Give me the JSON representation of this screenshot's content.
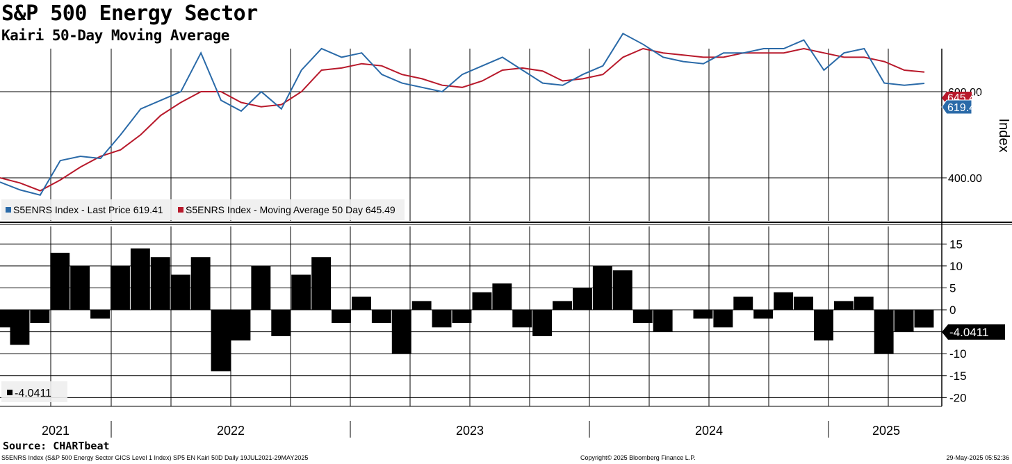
{
  "title": "S&P 500 Energy Sector",
  "subtitle": "Kairi 50-Day Moving Average",
  "source": "Source: CHARTbeat",
  "footer": {
    "left": "S5ENRS Index (S&P 500 Energy Sector GICS Level 1 Index) SP5 EN Kairi 50D  Daily 19JUL2021-29MAY2025",
    "center": "Copyright© 2025 Bloomberg Finance L.P.",
    "right": "29-May-2025 05:52:36"
  },
  "colors": {
    "price": "#2a6aa8",
    "ma": "#b8192b",
    "kairi": "#000000",
    "grid": "#000000"
  },
  "chart_data": [
    {
      "type": "line",
      "ylabel": "Index",
      "ylim": [
        300,
        700
      ],
      "y_ticks": [
        "400.00",
        "600.00"
      ],
      "legend": [
        "S5ENRS Index - Last Price 619.41",
        "S5ENRS Index - Moving Average 50 Day 645.49"
      ],
      "legend_position": "bottom-left",
      "last_labels": {
        "ma": "645.49",
        "price": "619.41"
      },
      "x": [
        "2021-07",
        "2021-08",
        "2021-09",
        "2021-10",
        "2021-11",
        "2021-12",
        "2022-01",
        "2022-02",
        "2022-03",
        "2022-04",
        "2022-05",
        "2022-06",
        "2022-07",
        "2022-08",
        "2022-09",
        "2022-10",
        "2022-11",
        "2022-12",
        "2023-01",
        "2023-02",
        "2023-03",
        "2023-04",
        "2023-05",
        "2023-06",
        "2023-07",
        "2023-08",
        "2023-09",
        "2023-10",
        "2023-11",
        "2023-12",
        "2024-01",
        "2024-02",
        "2024-03",
        "2024-04",
        "2024-05",
        "2024-06",
        "2024-07",
        "2024-08",
        "2024-09",
        "2024-10",
        "2024-11",
        "2024-12",
        "2025-01",
        "2025-02",
        "2025-03",
        "2025-04",
        "2025-05"
      ],
      "series": [
        {
          "name": "S5ENRS Index - Last Price 619.41",
          "values": [
            390,
            372,
            360,
            440,
            450,
            445,
            500,
            560,
            580,
            600,
            690,
            580,
            555,
            600,
            560,
            650,
            700,
            680,
            690,
            640,
            620,
            610,
            600,
            640,
            660,
            680,
            650,
            620,
            615,
            640,
            660,
            735,
            710,
            680,
            670,
            665,
            690,
            690,
            700,
            700,
            720,
            650,
            690,
            700,
            620,
            615,
            619.41
          ]
        },
        {
          "name": "S5ENRS Index - Moving Average 50 Day 645.49",
          "values": [
            400,
            388,
            370,
            395,
            425,
            450,
            465,
            500,
            545,
            575,
            600,
            600,
            575,
            565,
            570,
            600,
            650,
            655,
            665,
            660,
            640,
            630,
            615,
            610,
            625,
            650,
            655,
            648,
            625,
            630,
            640,
            680,
            700,
            690,
            685,
            680,
            680,
            690,
            690,
            690,
            700,
            690,
            680,
            680,
            670,
            650,
            645.49
          ]
        }
      ]
    },
    {
      "type": "bar",
      "title": "Kairi 50-Day Moving Average",
      "ylim": [
        -22,
        19
      ],
      "y_ticks": [
        15,
        10,
        5,
        0,
        -5,
        -10,
        -15,
        -20
      ],
      "last_value": "-4.0411",
      "legend": [
        "-4.0411"
      ],
      "legend_position": "bottom-left",
      "x_labels": [
        "2021",
        "2022",
        "2023",
        "2024",
        "2025"
      ],
      "x": [
        "2021-07",
        "2021-08",
        "2021-09",
        "2021-10",
        "2021-11",
        "2021-12",
        "2022-01",
        "2022-02",
        "2022-03",
        "2022-04",
        "2022-05",
        "2022-06",
        "2022-07",
        "2022-08",
        "2022-09",
        "2022-10",
        "2022-11",
        "2022-12",
        "2023-01",
        "2023-02",
        "2023-03",
        "2023-04",
        "2023-05",
        "2023-06",
        "2023-07",
        "2023-08",
        "2023-09",
        "2023-10",
        "2023-11",
        "2023-12",
        "2024-01",
        "2024-02",
        "2024-03",
        "2024-04",
        "2024-05",
        "2024-06",
        "2024-07",
        "2024-08",
        "2024-09",
        "2024-10",
        "2024-11",
        "2024-12",
        "2025-01",
        "2025-02",
        "2025-03",
        "2025-04",
        "2025-05"
      ],
      "values": [
        -4,
        -8,
        -3,
        13,
        10,
        -2,
        10,
        14,
        12,
        8,
        12,
        -14,
        -7,
        10,
        -6,
        8,
        12,
        -3,
        3,
        -3,
        -10,
        2,
        -4,
        -3,
        4,
        6,
        -4,
        -6,
        2,
        5,
        10,
        9,
        -3,
        -5,
        0,
        -2,
        -4,
        3,
        -2,
        4,
        3,
        -7,
        2,
        3,
        -10,
        -5,
        -4.0411
      ]
    }
  ]
}
